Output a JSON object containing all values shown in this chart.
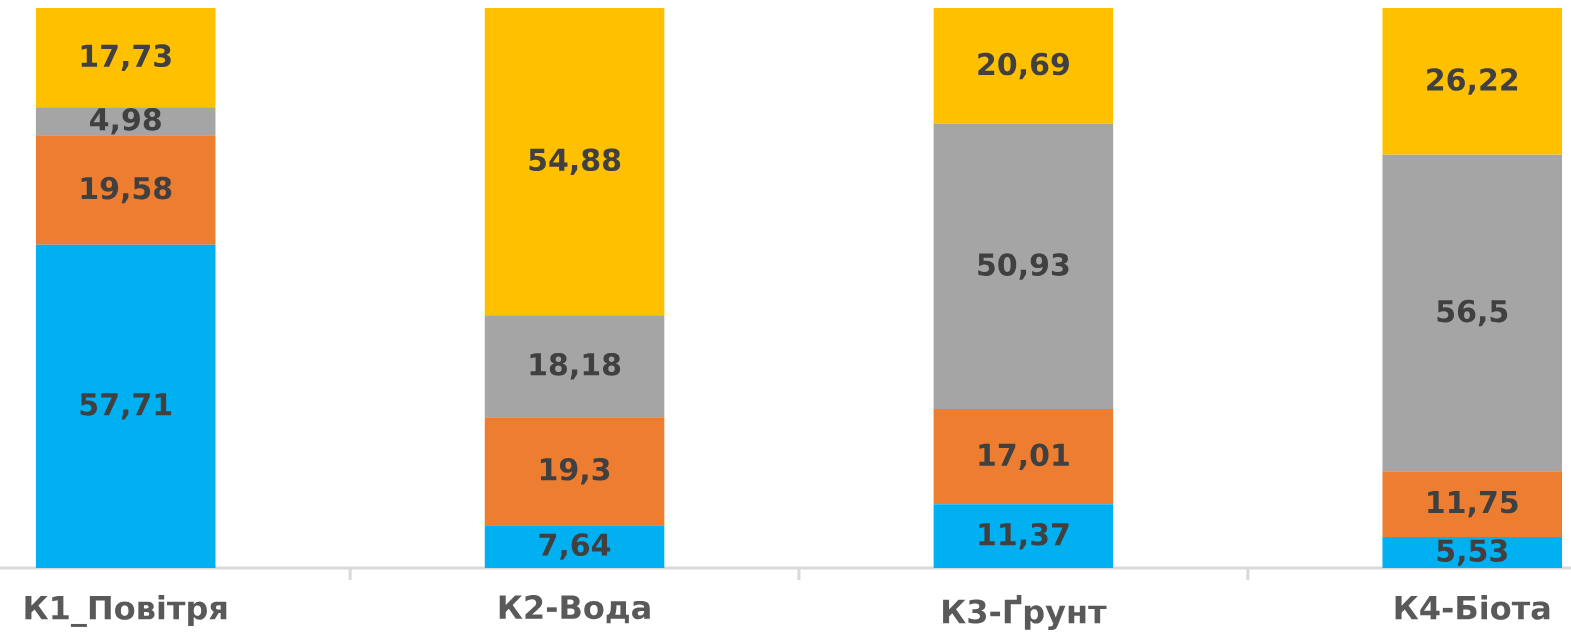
{
  "chart_data": {
    "type": "bar",
    "stacked": true,
    "ylim": [
      0,
      100
    ],
    "tick_labels": "x",
    "categories": [
      "К1_Повітря",
      "К2-Вода",
      "К3-Ґрунт",
      "К4-Біота"
    ],
    "series": [
      {
        "color": "#00b0f0",
        "values": [
          57.71,
          7.64,
          11.37,
          5.53
        ],
        "value_labels": [
          "57,71",
          "7,64",
          "11,37",
          "5,53"
        ]
      },
      {
        "color": "#ed7d31",
        "values": [
          19.58,
          19.3,
          17.01,
          11.75
        ],
        "value_labels": [
          "19,58",
          "19,3",
          "17,01",
          "11,75"
        ]
      },
      {
        "color": "#a5a5a5",
        "values": [
          4.98,
          18.18,
          50.93,
          56.5
        ],
        "value_labels": [
          "4,98",
          "18,18",
          "50,93",
          "56,5"
        ]
      },
      {
        "color": "#ffc000",
        "values": [
          17.73,
          54.88,
          20.69,
          26.22
        ],
        "value_labels": [
          "17,73",
          "54,88",
          "20,69",
          "26,22"
        ]
      }
    ]
  }
}
